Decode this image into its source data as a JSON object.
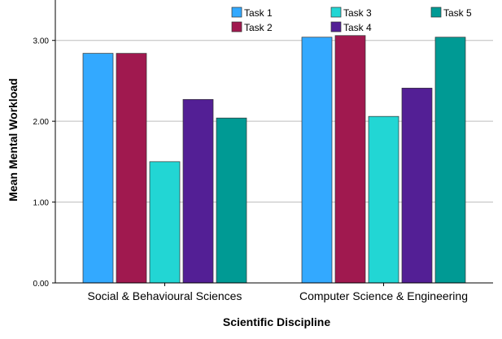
{
  "chart_data": {
    "type": "bar",
    "title": "",
    "xlabel": "Scientific Discipline",
    "ylabel": "Mean Mental Workload",
    "ylim": [
      0,
      3.0
    ],
    "yticks": [
      "0.00",
      "1.00",
      "2.00",
      "3.00"
    ],
    "ytick_values": [
      0,
      1,
      2,
      3
    ],
    "grid": true,
    "legend_position": "top",
    "categories": [
      "Social & Behavioural Sciences",
      "Computer Science & Engineering"
    ],
    "series": [
      {
        "name": "Task 1",
        "color": "#33a9ff",
        "values": [
          2.84,
          3.04
        ]
      },
      {
        "name": "Task 2",
        "color": "#a0194f",
        "values": [
          2.84,
          3.06
        ]
      },
      {
        "name": "Task 3",
        "color": "#22d6d4",
        "values": [
          1.5,
          2.06
        ]
      },
      {
        "name": "Task 4",
        "color": "#531f95",
        "values": [
          2.27,
          2.41
        ]
      },
      {
        "name": "Task 5",
        "color": "#009a94",
        "values": [
          2.04,
          3.04
        ]
      }
    ]
  }
}
